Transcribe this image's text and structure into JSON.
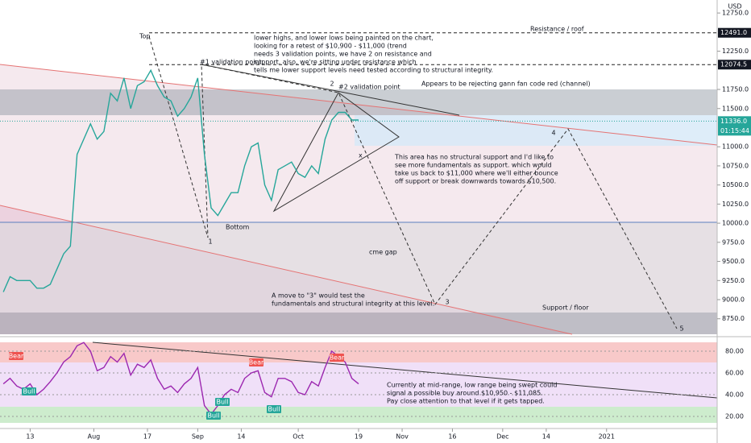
{
  "chart_data": [
    {
      "type": "line",
      "color": "#26a69a",
      "x": [
        0,
        2,
        4,
        6,
        8,
        10,
        12,
        14,
        16,
        18,
        20,
        22,
        24,
        26,
        28,
        30,
        32,
        34,
        36,
        38,
        40,
        42,
        44,
        46,
        48,
        50,
        52,
        54,
        56,
        58,
        60,
        62,
        64,
        66,
        68,
        70,
        72,
        74,
        76,
        78,
        80,
        82,
        84,
        86,
        88,
        90,
        92,
        94,
        96,
        98,
        100,
        102,
        104,
        106
      ],
      "values": [
        9100,
        9300,
        9250,
        9250,
        9250,
        9150,
        9150,
        9200,
        9400,
        9600,
        9700,
        10900,
        11100,
        11300,
        11100,
        11200,
        11700,
        11600,
        11900,
        11500,
        11800,
        11850,
        12000,
        11800,
        11650,
        11600,
        11400,
        11500,
        11650,
        11900,
        10900,
        10200,
        10100,
        10250,
        10400,
        10400,
        10750,
        11000,
        11050,
        10500,
        10300,
        10700,
        10750,
        10800,
        10650,
        10600,
        10750,
        10650,
        11100,
        11350,
        11450,
        11450,
        11350,
        11350
      ],
      "xlim": [
        -1,
        213
      ],
      "ylim": [
        8547,
        12920
      ],
      "xticks": [
        {
          "value": 8,
          "label": "13"
        },
        {
          "value": 27,
          "label": "Aug"
        },
        {
          "value": 43,
          "label": "17"
        },
        {
          "value": 58,
          "label": "Sep"
        },
        {
          "value": 71,
          "label": "14"
        },
        {
          "value": 88,
          "label": "Oct"
        },
        {
          "value": 106,
          "label": "19"
        },
        {
          "value": 119,
          "label": "Nov"
        },
        {
          "value": 134,
          "label": "16"
        },
        {
          "value": 149,
          "label": "Dec"
        },
        {
          "value": 162,
          "label": "14"
        },
        {
          "value": 180,
          "label": "2021"
        }
      ],
      "yticks": [
        {
          "value": 12750,
          "label": "12750.0"
        },
        {
          "value": 12250,
          "label": "12250.0"
        },
        {
          "value": 11750,
          "label": "11750.0"
        },
        {
          "value": 11500,
          "label": "11500.0"
        },
        {
          "value": 11000,
          "label": "11000.0"
        },
        {
          "value": 10750,
          "label": "10750.0"
        },
        {
          "value": 10500,
          "label": "10500.0"
        },
        {
          "value": 10250,
          "label": "10250.0"
        },
        {
          "value": 10000,
          "label": "10000.0"
        },
        {
          "value": 9750,
          "label": "9750.0"
        },
        {
          "value": 9500,
          "label": "9500.0"
        },
        {
          "value": 9250,
          "label": "9250.0"
        },
        {
          "value": 9000,
          "label": "9000.0"
        },
        {
          "value": 8750,
          "label": "8750.0"
        }
      ],
      "price_levels": [
        {
          "value": 12491,
          "label": "12491.0"
        },
        {
          "value": 12074.5,
          "label": "12074.5"
        }
      ],
      "last_price": {
        "value": 11336,
        "label": "11336.0"
      },
      "countdown": "01:15:44",
      "currency": "USD",
      "annotations": [
        "Top",
        "#1 validation point",
        "2",
        "#2 validation point",
        "Appears to be rejecting gann fan code red (channel)",
        "Resistance / roof",
        [
          "lower highs, and lower lows being painted on the chart,",
          "looking for a retest of $10,900 - $11,000 (trend",
          "needs 3 validation points, we have 2 on resistance and",
          "support. also, we're sitting under resistance which",
          "tells me lower support levels need tested according to structural integrity."
        ],
        [
          "This area has no structural support and I'd like to",
          "see more fundamentals as support. which would",
          "take us back to $11,000 where we'll either bounce",
          "off support or break downwards towards $10,500."
        ],
        "Bottom",
        "1",
        "cme gap",
        "4",
        "x",
        [
          "A move to \"3\" would test the",
          "fundamentals and structural integrity at this level."
        ],
        "3",
        "Support / floor",
        "5"
      ]
    },
    {
      "type": "line",
      "color": "#9c27b0",
      "x": [
        0,
        2,
        4,
        6,
        8,
        10,
        12,
        14,
        16,
        18,
        20,
        22,
        24,
        26,
        28,
        30,
        32,
        34,
        36,
        38,
        40,
        42,
        44,
        46,
        48,
        50,
        52,
        54,
        56,
        58,
        60,
        62,
        64,
        66,
        68,
        70,
        72,
        74,
        76,
        78,
        80,
        82,
        84,
        86,
        88,
        90,
        92,
        94,
        96,
        98,
        100,
        102,
        104,
        106
      ],
      "values": [
        50,
        55,
        48,
        45,
        50,
        40,
        45,
        52,
        60,
        70,
        75,
        85,
        88,
        80,
        62,
        65,
        75,
        70,
        78,
        58,
        68,
        65,
        72,
        55,
        45,
        48,
        42,
        50,
        55,
        65,
        30,
        22,
        30,
        40,
        45,
        42,
        55,
        60,
        62,
        42,
        38,
        55,
        55,
        52,
        42,
        40,
        52,
        48,
        65,
        80,
        75,
        70,
        55,
        50
      ],
      "xlim": [
        -1,
        213
      ],
      "ylim": [
        10.4,
        91.85
      ],
      "yticks": [
        {
          "value": 80,
          "label": "80.00"
        },
        {
          "value": 60,
          "label": "60.00"
        },
        {
          "value": 40,
          "label": "40.00"
        },
        {
          "value": 20,
          "label": "20.00"
        }
      ],
      "annotations": [
        "Bear",
        "Bear",
        "Bear",
        "Bull",
        "Bull",
        "Bull",
        "Bull",
        [
          "Currently at mid-range, low range being swept could",
          "signal a possible buy around $10,950 - $11,085.",
          "Pay close attention to that level if it gets tapped."
        ]
      ]
    }
  ]
}
